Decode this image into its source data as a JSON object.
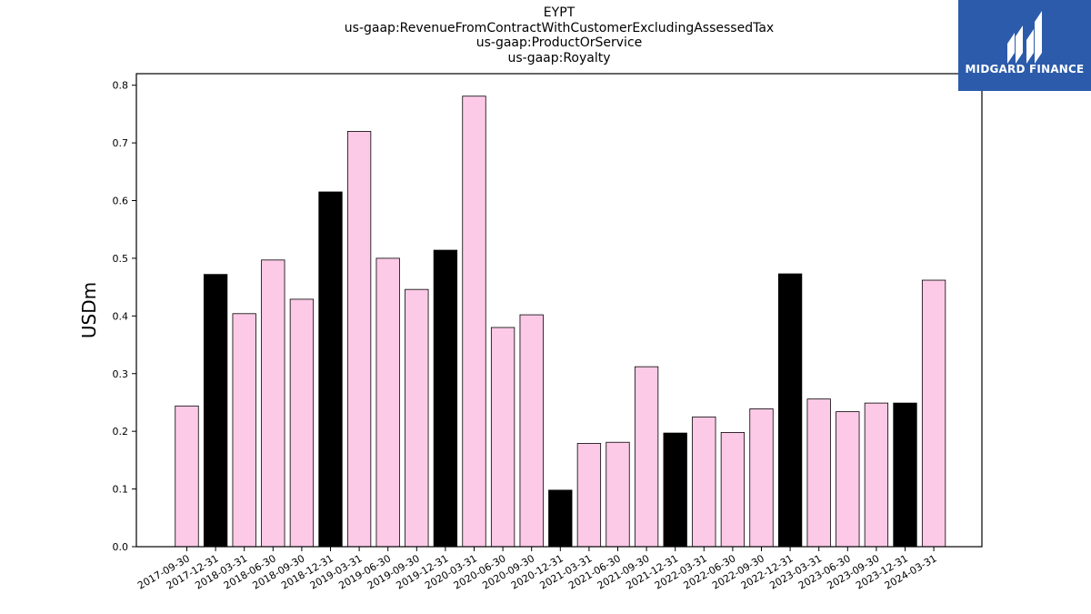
{
  "logo": {
    "text": "MIDGARD FINANCE",
    "background": "#2c5bab"
  },
  "chart_data": {
    "type": "bar",
    "title_lines": [
      "EYPT",
      "us-gaap:RevenueFromContractWithCustomerExcludingAssessedTax",
      "us-gaap:ProductOrService",
      "us-gaap:Royalty"
    ],
    "xlabel": "",
    "ylabel": "USDm",
    "ylim": [
      0,
      0.82
    ],
    "yticks": [
      "0.0",
      "0.1",
      "0.2",
      "0.3",
      "0.4",
      "0.5",
      "0.6",
      "0.7",
      "0.8"
    ],
    "colors": {
      "quarter": "#fccae6",
      "year_end": "#000000",
      "edge": "#000000"
    },
    "categories": [
      "2017-09-30",
      "2017-12-31",
      "2018-03-31",
      "2018-06-30",
      "2018-09-30",
      "2018-12-31",
      "2019-03-31",
      "2019-06-30",
      "2019-09-30",
      "2019-12-31",
      "2020-03-31",
      "2020-06-30",
      "2020-09-30",
      "2020-12-31",
      "2021-03-31",
      "2021-06-30",
      "2021-09-30",
      "2021-12-31",
      "2022-03-31",
      "2022-06-30",
      "2022-09-30",
      "2022-12-31",
      "2023-03-31",
      "2023-06-30",
      "2023-09-30",
      "2023-12-31",
      "2024-03-31"
    ],
    "values": [
      0.244,
      0.472,
      0.404,
      0.497,
      0.429,
      0.615,
      0.72,
      0.5,
      0.446,
      0.514,
      0.781,
      0.38,
      0.402,
      0.098,
      0.179,
      0.181,
      0.312,
      0.197,
      0.225,
      0.198,
      0.239,
      0.473,
      0.256,
      0.234,
      0.249,
      0.249,
      0.462
    ],
    "year_end": [
      false,
      true,
      false,
      false,
      false,
      true,
      false,
      false,
      false,
      true,
      false,
      false,
      false,
      true,
      false,
      false,
      false,
      true,
      false,
      false,
      false,
      true,
      false,
      false,
      false,
      true,
      false
    ],
    "grid": false,
    "legend": "none"
  }
}
